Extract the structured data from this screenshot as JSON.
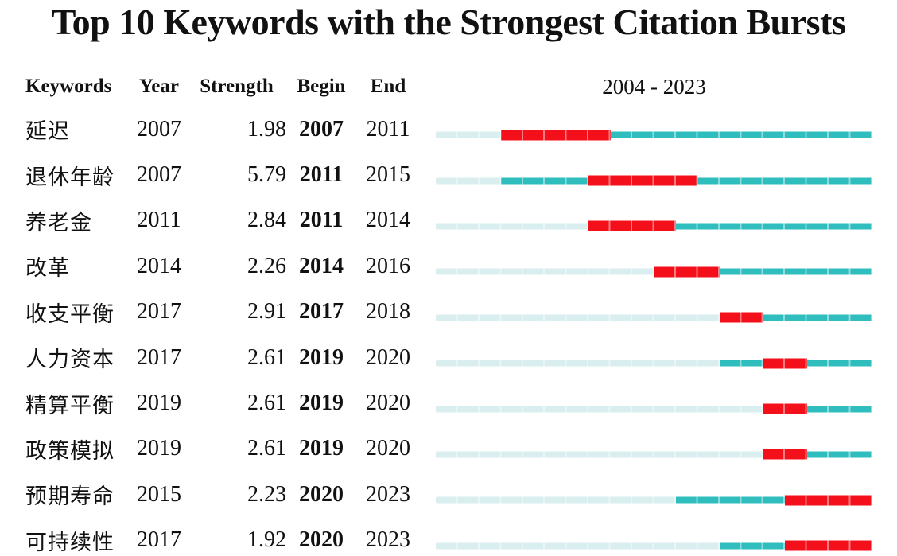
{
  "page_title": "Top 10 Keywords with the Strongest Citation Bursts",
  "table": {
    "headers": {
      "keywords": "Keywords",
      "year": "Year",
      "strength": "Strength",
      "begin": "Begin",
      "end": "End",
      "timeline": "2004 - 2023"
    }
  },
  "colors": {
    "burst": "#f4101b",
    "active": "#2fbdbd",
    "inactive": "#d9eeee",
    "text": "#111111",
    "background": "#ffffff"
  },
  "chart_data": {
    "type": "gantt",
    "title": "Top 10 Keywords with the Strongest Citation Bursts",
    "timeline_label": "2004 - 2023",
    "x_range": [
      2004,
      2023
    ],
    "columns": [
      "Keywords",
      "Year",
      "Strength",
      "Begin",
      "End"
    ],
    "bar_legend": {
      "inactive_color": "#d9eeee",
      "active_color": "#2fbdbd",
      "burst_color": "#f4101b"
    },
    "rows": [
      {
        "keyword": "延迟",
        "year": 2007,
        "strength": "1.98",
        "begin": 2007,
        "end": 2011
      },
      {
        "keyword": "退休年龄",
        "year": 2007,
        "strength": "5.79",
        "begin": 2011,
        "end": 2015
      },
      {
        "keyword": "养老金",
        "year": 2011,
        "strength": "2.84",
        "begin": 2011,
        "end": 2014
      },
      {
        "keyword": "改革",
        "year": 2014,
        "strength": "2.26",
        "begin": 2014,
        "end": 2016
      },
      {
        "keyword": "收支平衡",
        "year": 2017,
        "strength": "2.91",
        "begin": 2017,
        "end": 2018
      },
      {
        "keyword": "人力资本",
        "year": 2017,
        "strength": "2.61",
        "begin": 2019,
        "end": 2020
      },
      {
        "keyword": "精算平衡",
        "year": 2019,
        "strength": "2.61",
        "begin": 2019,
        "end": 2020
      },
      {
        "keyword": "政策模拟",
        "year": 2019,
        "strength": "2.61",
        "begin": 2019,
        "end": 2020
      },
      {
        "keyword": "预期寿命",
        "year": 2015,
        "strength": "2.23",
        "begin": 2020,
        "end": 2023
      },
      {
        "keyword": "可持续性",
        "year": 2017,
        "strength": "1.92",
        "begin": 2020,
        "end": 2023
      }
    ]
  }
}
